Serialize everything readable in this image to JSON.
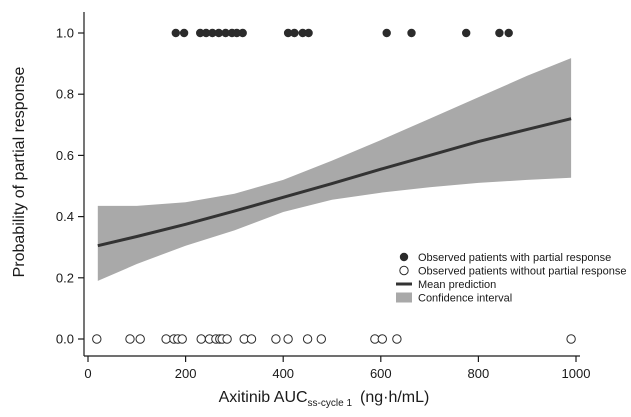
{
  "chart_data": {
    "type": "scatter",
    "xlabel": {
      "main": "Axitinib AUC",
      "sub": "ss-cycle 1",
      "unit": "(ng·h/mL)"
    },
    "ylabel": "Probability of partial response",
    "xlim": [
      0,
      1000
    ],
    "ylim": [
      0,
      1.05
    ],
    "x_ticks": [
      0,
      200,
      400,
      600,
      800,
      1000
    ],
    "y_ticks": [
      0.0,
      0.2,
      0.4,
      0.6,
      0.8,
      1.0
    ],
    "y_tick_labels": [
      "0.0",
      "0.2",
      "0.4",
      "0.6",
      "0.8",
      "1.0"
    ],
    "grid": false,
    "legend_position": "bottom-right",
    "legend": [
      {
        "label": "Observed patients with partial response",
        "kind": "filled-dot"
      },
      {
        "label": "Observed patients without partial response",
        "kind": "open-dot"
      },
      {
        "label": "Mean prediction",
        "kind": "line"
      },
      {
        "label": "Confidence interval",
        "kind": "band"
      }
    ],
    "series": [
      {
        "name": "Observed patients with partial response",
        "y": 1.0,
        "x": [
          180,
          197,
          230,
          242,
          255,
          268,
          282,
          295,
          305,
          317,
          410,
          423,
          440,
          452,
          612,
          663,
          775,
          843,
          862
        ]
      },
      {
        "name": "Observed patients without partial response",
        "y": 0.0,
        "x": [
          18,
          86,
          107,
          160,
          176,
          184,
          193,
          232,
          249,
          262,
          270,
          275,
          285,
          320,
          335,
          385,
          410,
          450,
          478,
          588,
          603,
          633,
          990
        ]
      },
      {
        "name": "Mean prediction",
        "x": [
          20,
          100,
          200,
          300,
          400,
          500,
          600,
          700,
          800,
          900,
          990
        ],
        "y": [
          0.305,
          0.335,
          0.375,
          0.418,
          0.463,
          0.508,
          0.555,
          0.6,
          0.645,
          0.685,
          0.72
        ]
      },
      {
        "name": "Confidence interval",
        "x": [
          20,
          100,
          200,
          300,
          400,
          500,
          600,
          700,
          800,
          900,
          990
        ],
        "lower": [
          0.19,
          0.245,
          0.305,
          0.355,
          0.415,
          0.455,
          0.478,
          0.496,
          0.51,
          0.52,
          0.527
        ],
        "upper": [
          0.435,
          0.435,
          0.447,
          0.475,
          0.52,
          0.583,
          0.65,
          0.72,
          0.79,
          0.86,
          0.918
        ]
      }
    ],
    "colors": {
      "band": "#a9a9a9",
      "line": "#333333",
      "marker": "#2b2b2b",
      "axis": "#1a1a1a"
    }
  }
}
